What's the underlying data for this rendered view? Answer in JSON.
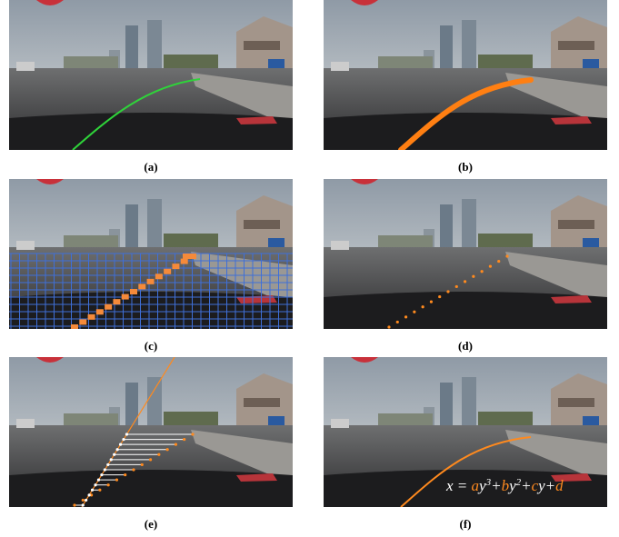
{
  "panels": [
    {
      "label": "(a)"
    },
    {
      "label": "(b)"
    },
    {
      "label": "(c)"
    },
    {
      "label": "(d)"
    },
    {
      "label": "(e)"
    },
    {
      "label": "(f)"
    }
  ],
  "equation": [
    {
      "text": "x = "
    },
    {
      "text": "a",
      "highlight": true
    },
    {
      "text": "y"
    },
    {
      "text": "3",
      "sup": true
    },
    {
      "text": "+"
    },
    {
      "text": "b",
      "highlight": true
    },
    {
      "text": "y"
    },
    {
      "text": "2",
      "sup": true
    },
    {
      "text": "+"
    },
    {
      "text": "c",
      "highlight": true
    },
    {
      "text": "y+"
    },
    {
      "text": "d",
      "highlight": true
    }
  ]
}
